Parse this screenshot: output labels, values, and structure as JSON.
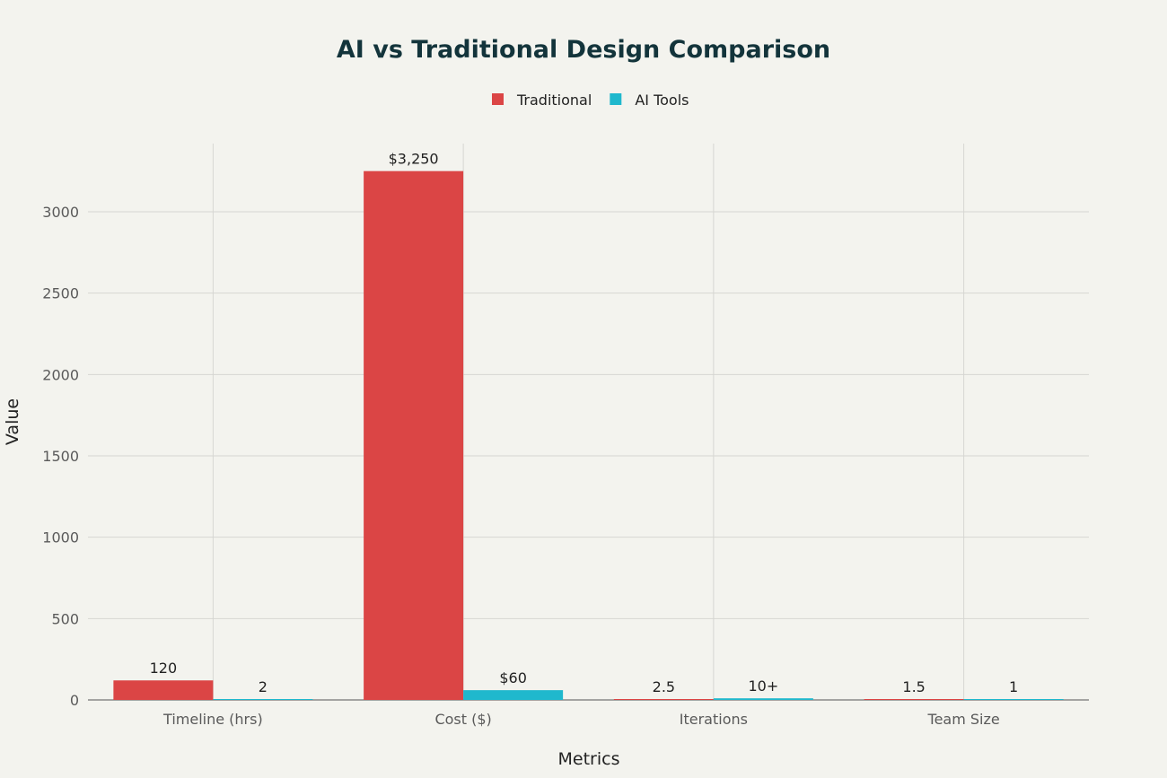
{
  "chart_data": {
    "type": "bar",
    "title": "AI vs Traditional Design Comparison",
    "xlabel": "Metrics",
    "ylabel": "Value",
    "categories": [
      "Timeline (hrs)",
      "Cost ($)",
      "Iterations",
      "Team Size"
    ],
    "series": [
      {
        "name": "Traditional",
        "color": "#DB4545",
        "values": [
          120,
          3250,
          2.5,
          1.5
        ],
        "labels": [
          "120",
          "$3,250",
          "2.5",
          "1.5"
        ]
      },
      {
        "name": "AI Tools",
        "color": "#1FB8CD",
        "values": [
          2,
          60,
          10,
          1
        ],
        "labels": [
          "2",
          "$60",
          "10+",
          "1"
        ]
      }
    ],
    "ylim": [
      0,
      3400
    ],
    "yticks": [
      0,
      500,
      1000,
      1500,
      2000,
      2500,
      3000
    ],
    "grid": true,
    "legend": "top-center"
  }
}
